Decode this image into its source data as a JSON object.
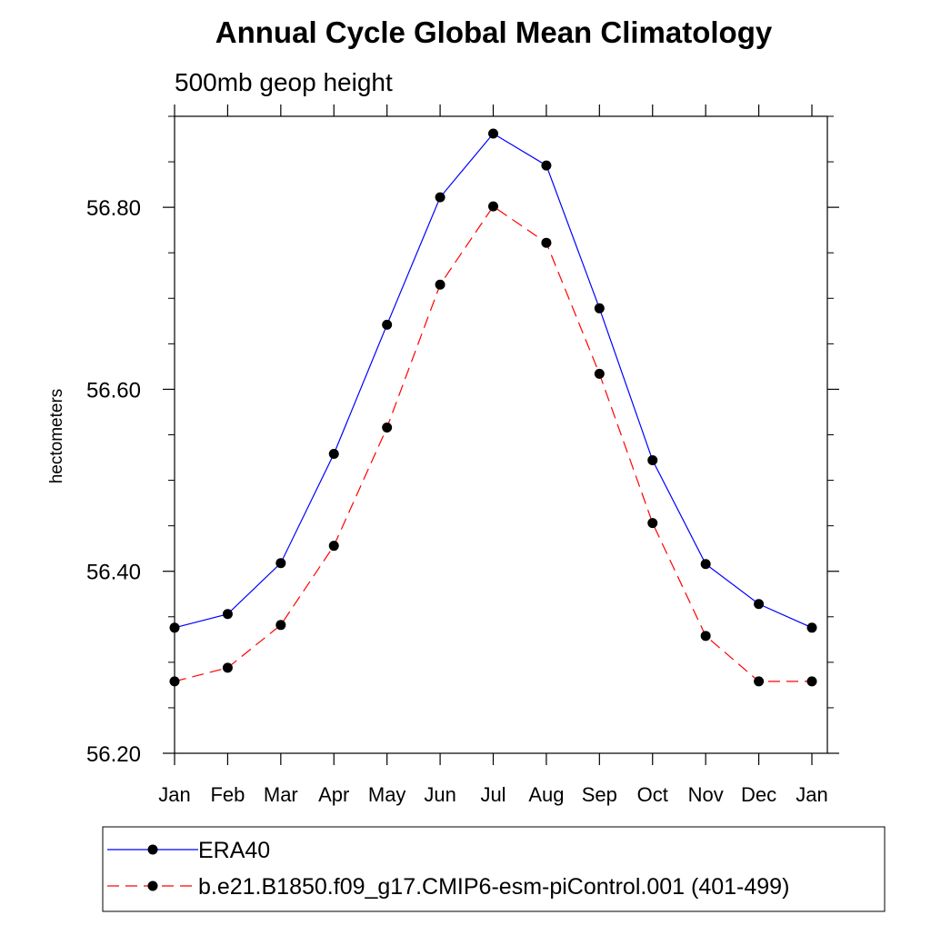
{
  "chart_data": {
    "type": "line",
    "title": "Annual Cycle Global Mean Climatology",
    "subtitle": "500mb geop height",
    "xlabel": "",
    "ylabel": "hectometers",
    "categories": [
      "Jan",
      "Feb",
      "Mar",
      "Apr",
      "May",
      "Jun",
      "Jul",
      "Aug",
      "Sep",
      "Oct",
      "Nov",
      "Dec",
      "Jan"
    ],
    "ylim": [
      56.2,
      56.9
    ],
    "yticks": [
      56.2,
      56.4,
      56.6,
      56.8
    ],
    "ytick_labels": [
      "56.20",
      "56.40",
      "56.60",
      "56.80"
    ],
    "grid": false,
    "legend_position": "bottom",
    "series": [
      {
        "name": "ERA40",
        "color": "#0000ff",
        "line_style": "solid",
        "marker": "filled-circle",
        "values": [
          56.338,
          56.353,
          56.409,
          56.529,
          56.671,
          56.811,
          56.881,
          56.846,
          56.689,
          56.522,
          56.408,
          56.364,
          56.338
        ]
      },
      {
        "name": "b.e21.B1850.f09_g17.CMIP6-esm-piControl.001 (401-499)",
        "color": "#ff0000",
        "line_style": "dashed",
        "marker": "filled-circle",
        "values": [
          56.279,
          56.294,
          56.341,
          56.428,
          56.558,
          56.715,
          56.801,
          56.761,
          56.617,
          56.453,
          56.329,
          56.279,
          56.279
        ]
      }
    ]
  }
}
